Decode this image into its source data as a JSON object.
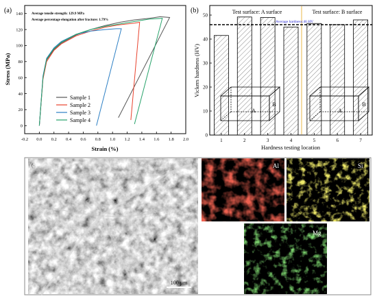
{
  "panel_a": {
    "label": "(a)",
    "note_strength": "Average tensile strength: 129.9 MPa",
    "note_elongation": "Average percentage elongation after fracture: 1.79%"
  },
  "panel_b": {
    "label": "(b)",
    "region_a_label": "Test surface: A surface",
    "region_b_label": "Test surface: B surface",
    "avg_label": "Average hardness:46 HV",
    "box_face_a": "A",
    "box_face_b": "B"
  },
  "panel_c": {
    "label": "(c)",
    "scale_bar": "100 μm",
    "map_al": "Al",
    "map_si": "Si",
    "map_mg": "Mg",
    "colors": {
      "al": "#d62418",
      "si": "#d8cf24",
      "mg": "#38b02c"
    }
  },
  "chart_data": [
    {
      "type": "line",
      "xlabel": "Strain (%)",
      "ylabel": "Stress (MPa)",
      "xlim": [
        -0.2,
        2.0
      ],
      "ylim": [
        -10,
        150
      ],
      "xticks": [
        -0.2,
        0.0,
        0.2,
        0.4,
        0.6,
        0.8,
        1.0,
        1.2,
        1.4,
        1.6,
        1.8,
        2.0
      ],
      "yticks": [
        0,
        20,
        40,
        60,
        80,
        100,
        120,
        140
      ],
      "legend": "bottom-right",
      "series": [
        {
          "name": "Sample 1",
          "color": "#555555",
          "x": [
            0,
            0.05,
            0.1,
            0.2,
            0.3,
            0.5,
            0.7,
            0.9,
            1.1,
            1.3,
            1.5,
            1.65,
            1.78,
            1.08
          ],
          "y": [
            0,
            60,
            82,
            95,
            103,
            113,
            120,
            125,
            129,
            132,
            134,
            136,
            135,
            10
          ]
        },
        {
          "name": "Sample 2",
          "color": "#e8412c",
          "x": [
            0,
            0.05,
            0.1,
            0.2,
            0.3,
            0.5,
            0.7,
            0.9,
            1.1,
            1.3,
            1.37,
            1.25
          ],
          "y": [
            0,
            58,
            80,
            94,
            102,
            112,
            118,
            123,
            126,
            128,
            129,
            7
          ]
        },
        {
          "name": "Sample 3",
          "color": "#2c7fc4",
          "x": [
            0,
            0.05,
            0.1,
            0.2,
            0.3,
            0.5,
            0.7,
            0.9,
            1.05,
            1.12,
            0.78
          ],
          "y": [
            0,
            62,
            84,
            97,
            105,
            114,
            118,
            120,
            121,
            121,
            0
          ]
        },
        {
          "name": "Sample 4",
          "color": "#26a26a",
          "x": [
            0,
            0.05,
            0.1,
            0.2,
            0.3,
            0.5,
            0.7,
            0.9,
            1.1,
            1.3,
            1.5,
            1.68,
            1.3
          ],
          "y": [
            0,
            60,
            83,
            96,
            104,
            114,
            120,
            124,
            127,
            130,
            133,
            134,
            2
          ]
        }
      ]
    },
    {
      "type": "bar",
      "xlabel": "Hardness testing location",
      "ylabel": "Vickers hardness (HV)",
      "ylim": [
        0,
        50
      ],
      "yticks": [
        0,
        10,
        20,
        30,
        40,
        50
      ],
      "categories": [
        "1",
        "2",
        "3",
        "4",
        "5",
        "6",
        "7"
      ],
      "values": [
        41.5,
        49.2,
        49,
        45,
        46.5,
        46,
        48
      ],
      "average": 46
    }
  ]
}
